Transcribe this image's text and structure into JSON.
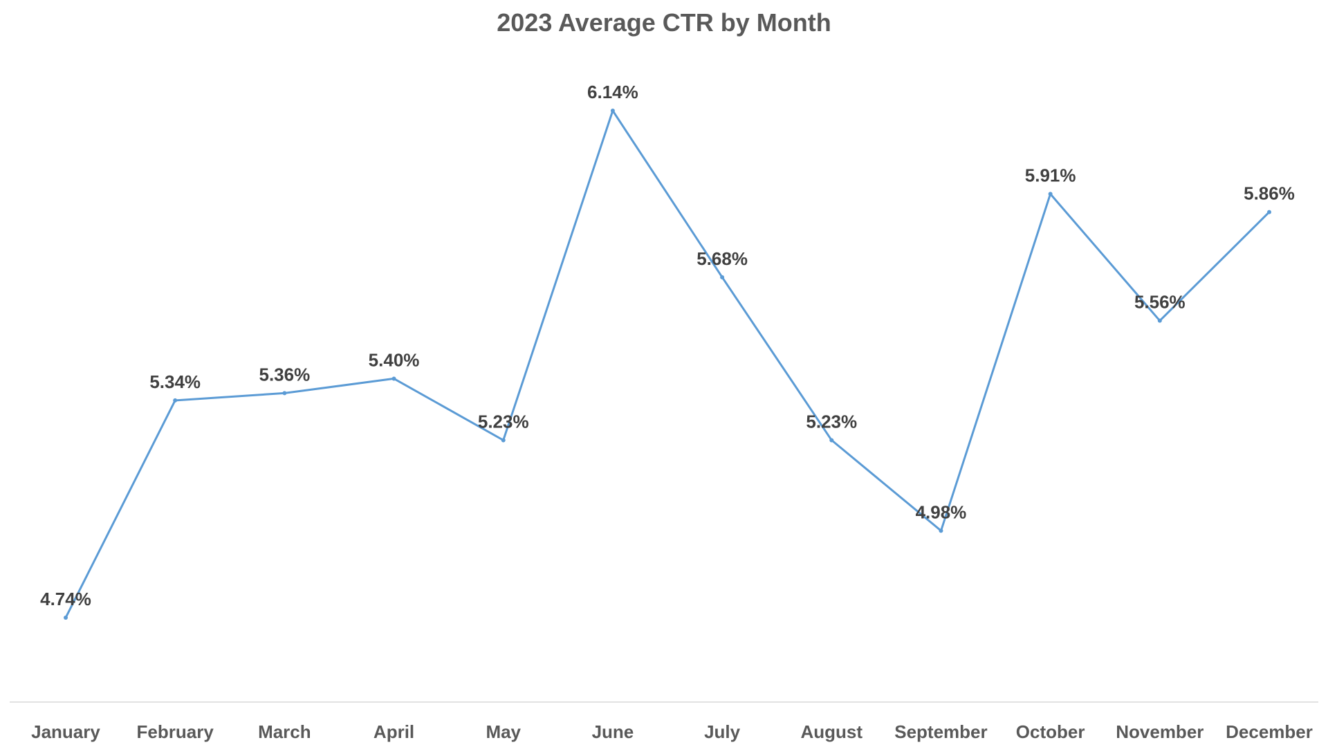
{
  "chart_data": {
    "type": "line",
    "title": "2023 Average CTR by Month",
    "xlabel": "",
    "ylabel": "",
    "categories": [
      "January",
      "February",
      "March",
      "April",
      "May",
      "June",
      "July",
      "August",
      "September",
      "October",
      "November",
      "December"
    ],
    "series": [
      {
        "values": [
          4.74,
          5.34,
          5.36,
          5.4,
          5.23,
          6.14,
          5.68,
          5.23,
          4.98,
          5.91,
          5.56,
          5.86
        ],
        "labels": [
          "4.74%",
          "5.34%",
          "5.36%",
          "5.40%",
          "5.23%",
          "6.14%",
          "5.68%",
          "5.23%",
          "4.98%",
          "5.91%",
          "5.56%",
          "5.86%"
        ],
        "color": "#5B9BD5"
      }
    ],
    "ylim": [
      4.5,
      6.4
    ],
    "grid": false,
    "legend": "none",
    "axis_color": "#D9D9D9"
  }
}
